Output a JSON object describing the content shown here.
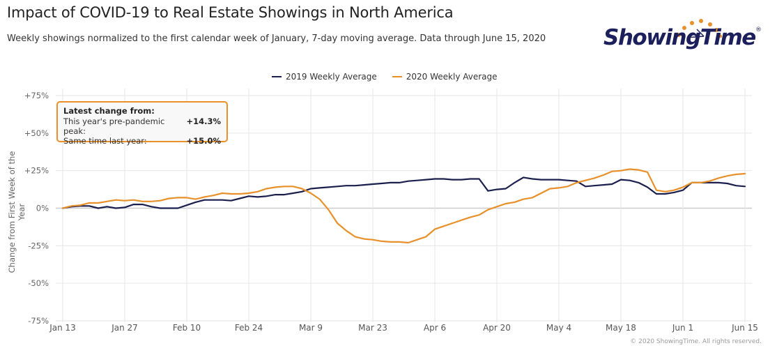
{
  "header": {
    "title": "Impact of COVID-19 to Real Estate Showings in North America",
    "subtitle": "Weekly showings normalized to the first calendar week of January, 7-day moving average. Data through June 15, 2020"
  },
  "logo": {
    "text": "ShowingTime",
    "reg": "®",
    "dot_color": "#e8902a",
    "text_color": "#1b1f5c"
  },
  "infobox": {
    "heading": "Latest change from:",
    "rows": [
      {
        "label": "This year's pre-pandemic peak:",
        "value": "+14.3%"
      },
      {
        "label": "Same time last year:",
        "value": "+15.0%"
      }
    ]
  },
  "credit": "© 2020 ShowingTime. All rights reserved.",
  "colors": {
    "series_2019": "#1b1f4e",
    "series_2020": "#e8902a",
    "grid": "#e6e6e6",
    "zero": "#cccccc"
  },
  "chart_data": {
    "type": "line",
    "title": "Impact of COVID-19 to Real Estate Showings in North America",
    "xlabel": "",
    "ylabel": "Change from First Week of the Year",
    "ylim": [
      -75,
      75
    ],
    "yticks": [
      75,
      50,
      25,
      0,
      -25,
      -50,
      -75
    ],
    "ytick_labels": [
      "+75%",
      "+50%",
      "+25%",
      "0%",
      "-25%",
      "-50%",
      "-75%"
    ],
    "xlim_days": [
      0,
      154
    ],
    "xticks_days": [
      0,
      14,
      28,
      42,
      56,
      70,
      84,
      98,
      112,
      126,
      140,
      154
    ],
    "xtick_labels": [
      "Jan 13",
      "Jan 27",
      "Feb 10",
      "Feb 24",
      "Mar 9",
      "Mar 23",
      "Apr 6",
      "Apr 20",
      "May 4",
      "May 18",
      "Jun 1",
      "Jun 15"
    ],
    "x_unit": "days since Jan 13",
    "grid": true,
    "legend": "top-center",
    "x": [
      0,
      2,
      4,
      6,
      8,
      10,
      12,
      14,
      16,
      18,
      20,
      22,
      24,
      26,
      28,
      30,
      32,
      34,
      36,
      38,
      40,
      42,
      44,
      46,
      48,
      50,
      52,
      54,
      56,
      58,
      60,
      62,
      64,
      66,
      68,
      70,
      72,
      74,
      76,
      78,
      80,
      82,
      84,
      86,
      88,
      90,
      92,
      94,
      96,
      98,
      100,
      102,
      104,
      106,
      108,
      110,
      112,
      114,
      116,
      118,
      120,
      122,
      124,
      126,
      128,
      130,
      132,
      134,
      136,
      138,
      140,
      142,
      144,
      146,
      148,
      150,
      152,
      154
    ],
    "series": [
      {
        "name": "2019 Weekly Average",
        "values": [
          0,
          1,
          1.5,
          1.5,
          0,
          1,
          0,
          0.5,
          2.5,
          2.5,
          1,
          0,
          0,
          0,
          2,
          4,
          5.5,
          5.5,
          5.5,
          5,
          6.5,
          8,
          7.5,
          8,
          9,
          9,
          10,
          11,
          13,
          13.5,
          14,
          14.5,
          15,
          15,
          15.5,
          16,
          16.5,
          17,
          17,
          18,
          18.5,
          19,
          19.5,
          19.5,
          19,
          19,
          19.5,
          19.5,
          11.5,
          12.5,
          13,
          17,
          20.5,
          19.5,
          19,
          19,
          19,
          18.5,
          18,
          14.5,
          15,
          15.5,
          16,
          19,
          18.5,
          17,
          14,
          9.5,
          9.5,
          10.5,
          12,
          17,
          17,
          17,
          17,
          16.5,
          15,
          14.5
        ]
      },
      {
        "name": "2020 Weekly Average",
        "values": [
          0,
          1.5,
          2,
          3.5,
          3.5,
          4.5,
          5.5,
          5,
          5.5,
          4.5,
          4.5,
          5,
          6.5,
          7,
          7,
          6,
          7.5,
          8.5,
          10,
          9.5,
          9.5,
          10,
          11,
          13,
          14,
          14.5,
          14.5,
          13,
          10,
          6,
          -1,
          -10,
          -15,
          -19,
          -20.5,
          -21,
          -22,
          -22.5,
          -22.5,
          -23,
          -21,
          -19,
          -14,
          -12,
          -10,
          -8,
          -6,
          -4.5,
          -1,
          1,
          3,
          4,
          6,
          7,
          10,
          13,
          13.5,
          14.5,
          17,
          18.5,
          20,
          22,
          24.5,
          25,
          26,
          25.5,
          24,
          12,
          11,
          12,
          14,
          17,
          17,
          18,
          20,
          21.5,
          22.5,
          23
        ]
      }
    ]
  }
}
